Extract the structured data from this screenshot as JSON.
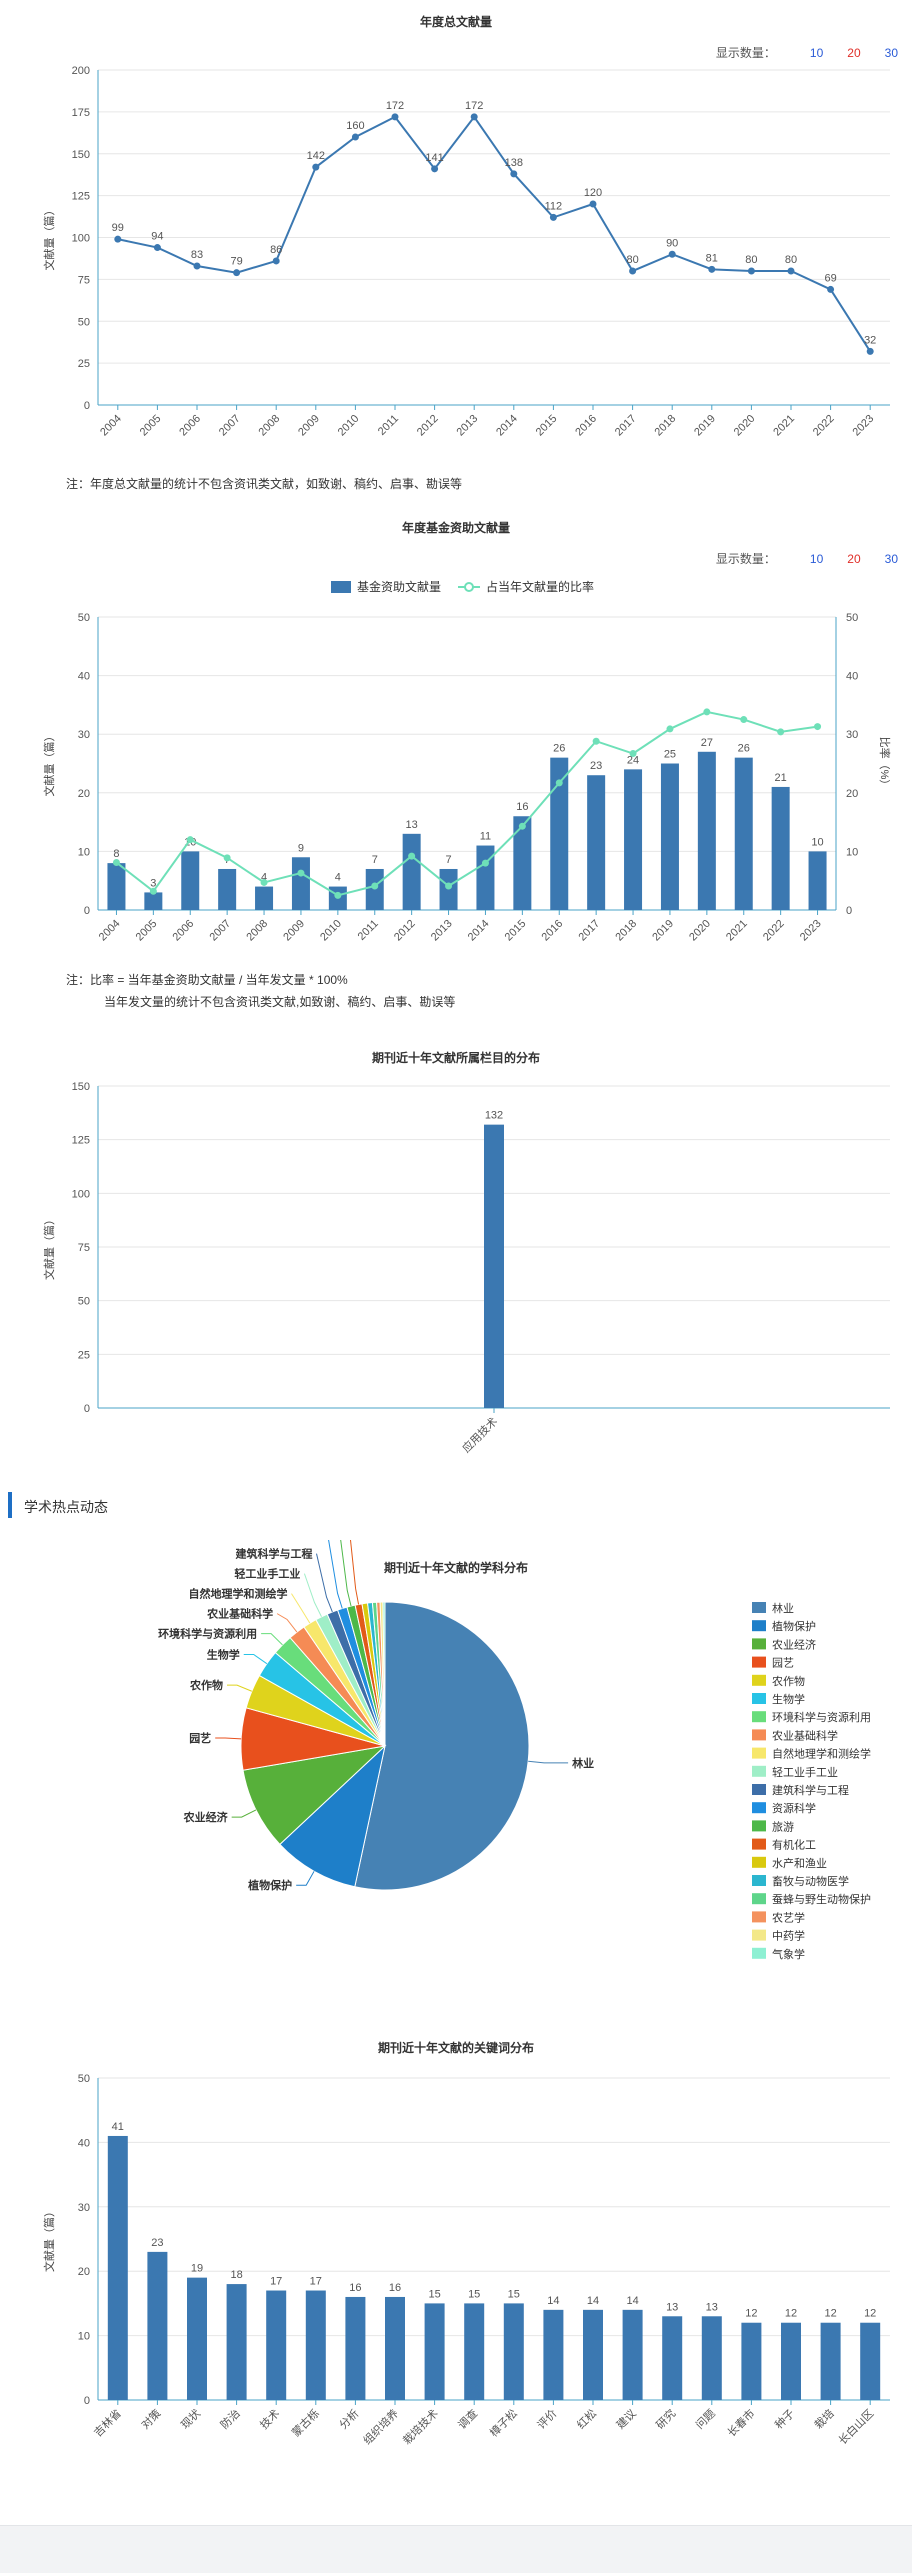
{
  "controls": {
    "label": "显示数量：",
    "options": [
      "10",
      "20",
      "30"
    ]
  },
  "section": {
    "title": "学术热点动态"
  },
  "chart_data": [
    {
      "id": "total",
      "type": "line",
      "title": "年度总文献量",
      "ylabel": "文献量（篇）",
      "ylim": [
        0,
        200
      ],
      "yticks": [
        0,
        25,
        50,
        75,
        100,
        125,
        150,
        175,
        200
      ],
      "categories": [
        "2004",
        "2005",
        "2006",
        "2007",
        "2008",
        "2009",
        "2010",
        "2011",
        "2012",
        "2013",
        "2014",
        "2015",
        "2016",
        "2017",
        "2018",
        "2019",
        "2020",
        "2021",
        "2022",
        "2023"
      ],
      "values": [
        99,
        94,
        83,
        79,
        86,
        142,
        160,
        172,
        141,
        172,
        138,
        112,
        120,
        80,
        90,
        81,
        80,
        80,
        69,
        32
      ],
      "note": "注：年度总文献量的统计不包含资讯类文献，如致谢、稿约、启事、勘误等",
      "color": "#3b78b1"
    },
    {
      "id": "fund",
      "type": "bar",
      "title": "年度基金资助文献量",
      "ylabel": "文献量（篇）",
      "y2label": "比率（%）",
      "ylim": [
        0,
        50
      ],
      "yticks": [
        0,
        10,
        20,
        30,
        40,
        50
      ],
      "legend": [
        "基金资助文献量",
        "占当年文献量的比率"
      ],
      "categories": [
        "2004",
        "2005",
        "2006",
        "2007",
        "2008",
        "2009",
        "2010",
        "2011",
        "2012",
        "2013",
        "2014",
        "2015",
        "2016",
        "2017",
        "2018",
        "2019",
        "2020",
        "2021",
        "2022",
        "2023"
      ],
      "series": [
        {
          "name": "基金资助文献量",
          "type": "bar",
          "values": [
            8,
            3,
            10,
            7,
            4,
            9,
            4,
            7,
            13,
            7,
            11,
            16,
            26,
            23,
            24,
            25,
            27,
            26,
            21,
            10
          ]
        },
        {
          "name": "占当年文献量的比率",
          "type": "line",
          "values": [
            8.1,
            3.2,
            12.0,
            8.9,
            4.7,
            6.3,
            2.5,
            4.1,
            9.2,
            4.1,
            8.0,
            14.3,
            21.7,
            28.8,
            26.7,
            30.9,
            33.8,
            32.5,
            30.4,
            31.3
          ]
        }
      ],
      "colors": {
        "bar": "#3b78b1",
        "line": "#6ee0b8"
      },
      "note": [
        "注：比率 = 当年基金资助文献量 / 当年发文量 * 100%",
        "当年发文量的统计不包含资讯类文献,如致谢、稿约、启事、勘误等"
      ]
    },
    {
      "id": "column",
      "type": "bar",
      "title": "期刊近十年文献所属栏目的分布",
      "ylabel": "文献量（篇）",
      "ylim": [
        0,
        150
      ],
      "yticks": [
        0,
        25,
        50,
        75,
        100,
        125,
        150
      ],
      "categories": [
        "应用技术"
      ],
      "values": [
        132
      ],
      "color": "#3b78b1"
    },
    {
      "id": "subject",
      "type": "pie",
      "title": "期刊近十年文献的学科分布",
      "labels": [
        "林业",
        "植物保护",
        "农业经济",
        "园艺",
        "农作物",
        "生物学",
        "环境科学与资源利用",
        "农业基础科学",
        "自然地理学和测绘学",
        "轻工业手工业",
        "建筑科学与工程",
        "资源科学",
        "旅游",
        "有机化工",
        "水产和渔业",
        "畜牧与动物医学",
        "蚕蜂与野生动物保护",
        "农艺学",
        "中药学",
        "气象学"
      ],
      "values": [
        690,
        125,
        120,
        90,
        50,
        40,
        30,
        25,
        20,
        18,
        16,
        14,
        12,
        10,
        8,
        7,
        6,
        5,
        4,
        3
      ],
      "colors": [
        "#4682b4",
        "#1e7fc9",
        "#57b03a",
        "#e8501d",
        "#dfd31c",
        "#27c3e6",
        "#68dd7b",
        "#f58b55",
        "#f7e76b",
        "#9feec7",
        "#3d6ea8",
        "#1f8ee0",
        "#4db849",
        "#e25a18",
        "#d9c90e",
        "#2bb6cf",
        "#5ed58a",
        "#f4925e",
        "#f3e889",
        "#8ef0d3"
      ],
      "outside_labels": [
        "林业",
        "植物保护",
        "农业经济",
        "园艺",
        "农作物",
        "生物学",
        "环境科学与资源利用",
        "农业基础科学",
        "自然地理学和测绘学",
        "轻工业手工业",
        "建筑科学与工程",
        "资源科学",
        "旅游",
        "有机化工"
      ]
    },
    {
      "id": "keyword",
      "type": "bar",
      "title": "期刊近十年文献的关键词分布",
      "ylabel": "文献量（篇）",
      "ylim": [
        0,
        50
      ],
      "yticks": [
        0,
        10,
        20,
        30,
        40,
        50
      ],
      "categories": [
        "吉林省",
        "对策",
        "现状",
        "防治",
        "技术",
        "蒙古栎",
        "分析",
        "组织培养",
        "栽培技术",
        "调查",
        "樟子松",
        "评价",
        "红松",
        "建议",
        "研究",
        "问题",
        "长春市",
        "种子",
        "栽培",
        "长白山区"
      ],
      "values": [
        41,
        23,
        19,
        18,
        17,
        17,
        16,
        16,
        15,
        15,
        15,
        14,
        14,
        14,
        13,
        13,
        12,
        12,
        12,
        12
      ],
      "color": "#3b78b1"
    }
  ]
}
